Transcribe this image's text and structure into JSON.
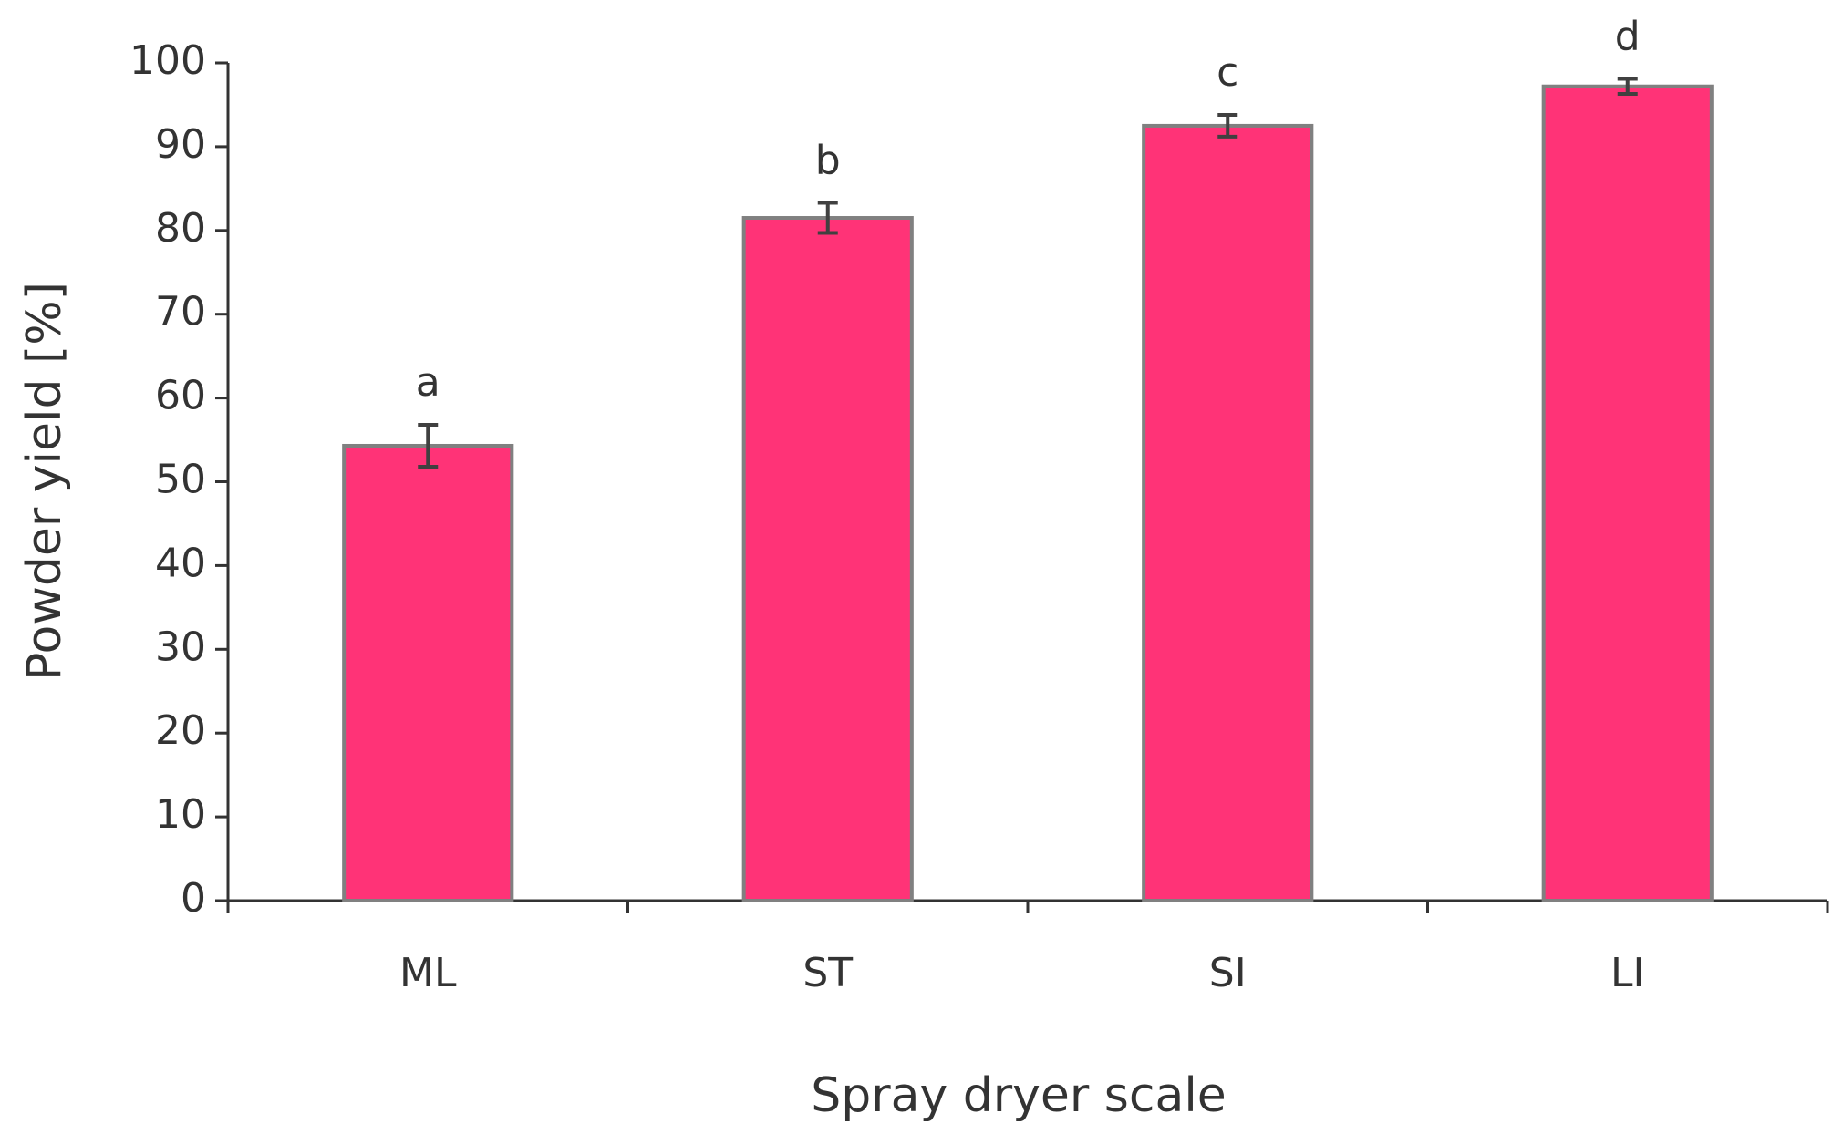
{
  "chart_data": {
    "type": "bar",
    "x_label": "Spray dryer scale",
    "y_label": "Powder yield [%]",
    "categories": [
      "ML",
      "ST",
      "SI",
      "LI"
    ],
    "values": [
      54.3,
      81.5,
      92.5,
      97.2
    ],
    "errors": [
      2.5,
      1.8,
      1.3,
      0.9
    ],
    "annotations": [
      "a",
      "b",
      "c",
      "d"
    ],
    "color": "#ff3377",
    "ylim": [
      0,
      100
    ],
    "yticks": [
      0,
      10,
      20,
      30,
      40,
      50,
      60,
      70,
      80,
      90,
      100
    ],
    "grid": false
  }
}
